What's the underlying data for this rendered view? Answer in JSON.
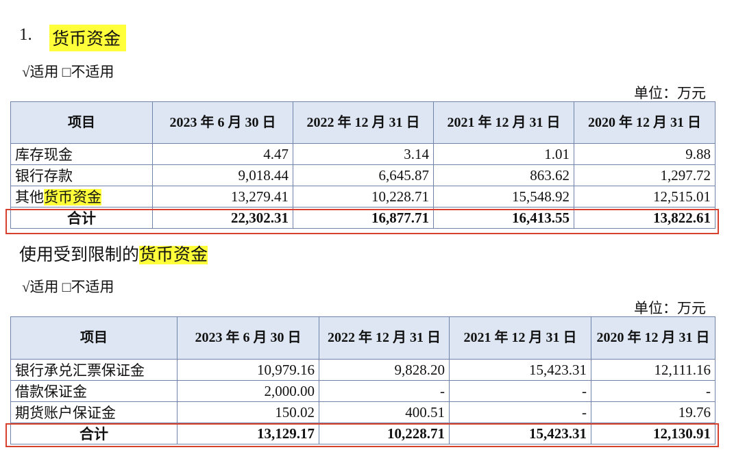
{
  "section1": {
    "number": "1.",
    "title": "货币资金",
    "applicability": "√适用 □不适用",
    "unit": "单位：万元",
    "table": {
      "header": [
        "项目",
        "2023 年 6 月 30 日",
        "2022 年 12 月 31 日",
        "2021 年 12 月 31 日",
        "2020 年 12 月 31 日"
      ],
      "rows": [
        {
          "label": "库存现金",
          "values": [
            "4.47",
            "3.14",
            "1.01",
            "9.88"
          ]
        },
        {
          "label": "银行存款",
          "values": [
            "9,018.44",
            "6,645.87",
            "863.62",
            "1,297.72"
          ]
        },
        {
          "label": "其他",
          "label_highlight": "货币资金",
          "values": [
            "13,279.41",
            "10,228.71",
            "15,548.92",
            "12,515.01"
          ]
        }
      ],
      "total": {
        "label": "合计",
        "values": [
          "22,302.31",
          "16,877.71",
          "16,413.55",
          "13,822.61"
        ]
      }
    }
  },
  "section2": {
    "title": "使用受到限制的",
    "title_highlight": "货币资金",
    "applicability": "√适用 □不适用",
    "unit": "单位：万元",
    "table": {
      "header": [
        "项目",
        "2023 年 6 月 30 日",
        "2022 年 12 月 31 日",
        "2021 年 12 月 31 日",
        "2020 年 12 月 31 日"
      ],
      "rows": [
        {
          "label": "银行承兑汇票保证金",
          "values": [
            "10,979.16",
            "9,828.20",
            "15,423.31",
            "12,111.16"
          ]
        },
        {
          "label": "借款保证金",
          "values": [
            "2,000.00",
            "-",
            "-",
            "-"
          ]
        },
        {
          "label": "期货账户保证金",
          "values": [
            "150.02",
            "400.51",
            "-",
            "19.76"
          ]
        }
      ],
      "total": {
        "label": "合计",
        "values": [
          "13,129.17",
          "10,228.71",
          "15,423.31",
          "12,130.91"
        ]
      }
    }
  }
}
